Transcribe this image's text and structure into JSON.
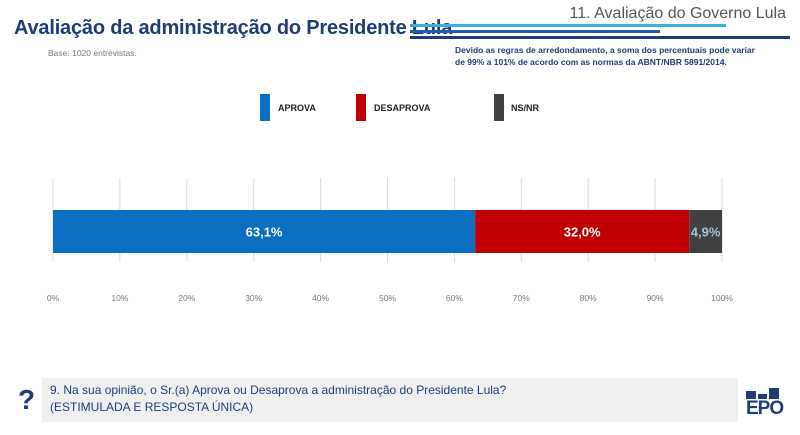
{
  "header": {
    "section": "11. Avaliação do Governo Lula",
    "title": "Avaliação da administração do Presidente Lula",
    "base": "Base: 1020 entrevistas.",
    "note_line1": "Devido as regras de arredondamento, a soma dos percentuais pode variar",
    "note_line2": "de 99% a 101% de acordo com as normas da ABNT/NBR 5891/2014."
  },
  "colors": {
    "aprova": "#0a6fc0",
    "desaprova": "#c00000",
    "nsnr": "#404040",
    "title": "#1f3c78",
    "accent_cyan": "#3bb0d8"
  },
  "chart_data": {
    "type": "bar",
    "orientation": "horizontal",
    "stacked": true,
    "legend": [
      "APROVA",
      "DESAPROVA",
      "NS/NR"
    ],
    "legend_placement": "top",
    "series": [
      {
        "name": "APROVA",
        "values": [
          63.1
        ],
        "label": "63,1%"
      },
      {
        "name": "DESAPROVA",
        "values": [
          32.0
        ],
        "label": "32,0%"
      },
      {
        "name": "NS/NR",
        "values": [
          4.9
        ],
        "label": "4,9%"
      }
    ],
    "xlim": [
      0,
      100
    ],
    "ticks": [
      "0%",
      "10%",
      "20%",
      "30%",
      "40%",
      "50%",
      "60%",
      "70%",
      "80%",
      "90%",
      "100%"
    ],
    "grid": true
  },
  "question": {
    "mark": "?",
    "line1": "9. Na sua opinião, o Sr.(a) Aprova ou Desaprova a administração do Presidente Lula?",
    "line2": "(ESTIMULADA E RESPOSTA ÚNICA)"
  },
  "logo": "EPO"
}
